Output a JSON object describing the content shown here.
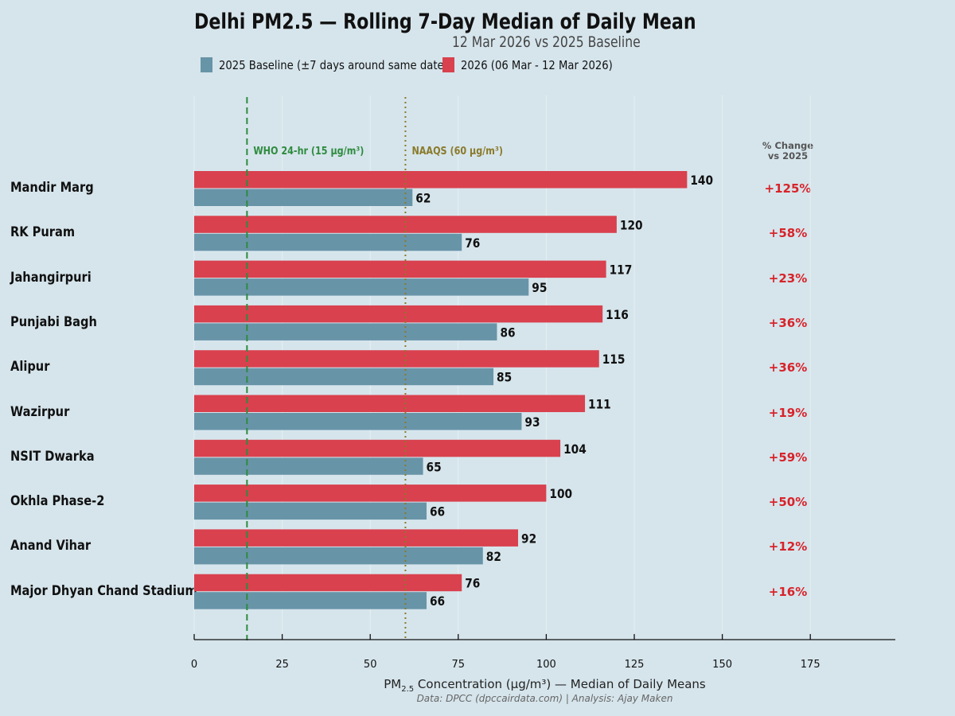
{
  "chart_data": {
    "type": "bar",
    "orientation": "horizontal",
    "title": "Delhi PM2.5 — Rolling 7-Day Median of Daily Mean",
    "subtitle": "12 Mar 2026  vs  2025 Baseline",
    "categories": [
      "Mandir Marg",
      "RK Puram",
      "Jahangirpuri",
      "Punjabi Bagh",
      "Alipur",
      "Wazirpur",
      "NSIT Dwarka",
      "Okhla Phase-2",
      "Anand Vihar",
      "Major Dhyan Chand Stadium"
    ],
    "series": [
      {
        "name": "2026 (06 Mar - 12 Mar 2026)",
        "color": "#d9414e",
        "values": [
          140,
          120,
          117,
          116,
          115,
          111,
          104,
          100,
          92,
          76
        ]
      },
      {
        "name": "2025 Baseline (±7 days around same date)",
        "color": "#6894a8",
        "values": [
          62,
          76,
          95,
          86,
          85,
          93,
          65,
          66,
          82,
          66
        ]
      }
    ],
    "pct_change_header": [
      "% Change",
      "vs 2025"
    ],
    "pct_change": [
      "+125%",
      "+58%",
      "+23%",
      "+36%",
      "+36%",
      "+19%",
      "+59%",
      "+50%",
      "+12%",
      "+16%"
    ],
    "xlabel_main": "PM",
    "xlabel_sub": "2.5",
    "xlabel_rest": " Concentration (µg/m³) — Median of Daily Means",
    "xlim": [
      0,
      199
    ],
    "xticks": [
      0,
      25,
      50,
      75,
      100,
      125,
      150,
      175
    ],
    "reference_lines": [
      {
        "label": "WHO 24-hr (15 µg/m³)",
        "value": 15,
        "color": "#2e8b3e",
        "style": "dashed"
      },
      {
        "label": "NAAQS (60 µg/m³)",
        "value": 60,
        "color": "#8a7a2a",
        "style": "dotted"
      }
    ],
    "legend_position": "top-left",
    "grid": "vertical-light",
    "source": "Data: DPCC (dpccairdata.com) | Analysis: Ajay Maken"
  }
}
